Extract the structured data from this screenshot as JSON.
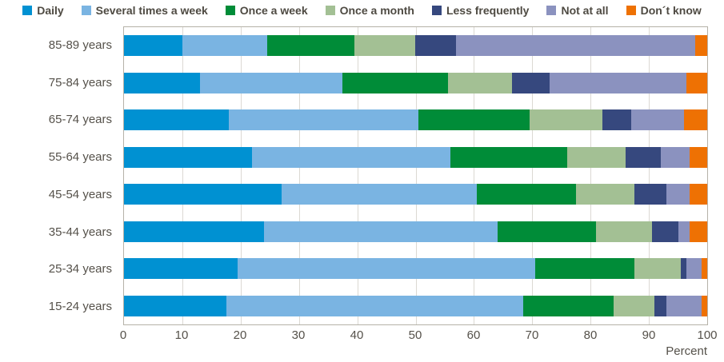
{
  "chart_data": {
    "type": "bar",
    "orientation": "horizontal",
    "stacked": true,
    "title": "",
    "xlabel": "Percent",
    "ylabel": "",
    "xlim": [
      0,
      100
    ],
    "xticks": [
      0,
      10,
      20,
      30,
      40,
      50,
      60,
      70,
      80,
      90,
      100
    ],
    "grid": true,
    "legend_position": "top",
    "categories": [
      "85-89 years",
      "75-84 years",
      "65-74 years",
      "55-64 years",
      "45-54 years",
      "35-44 years",
      "25-34 years",
      "15-24 years"
    ],
    "series": [
      {
        "name": "Daily",
        "color": "#0091d2",
        "values": [
          10,
          13,
          18,
          22,
          27,
          24,
          19.5,
          17.5
        ]
      },
      {
        "name": "Several times a week",
        "color": "#7ab4e2",
        "values": [
          14.5,
          24.5,
          32.5,
          34,
          33.5,
          40,
          51,
          51
        ]
      },
      {
        "name": "Once a week",
        "color": "#008c38",
        "values": [
          15,
          18,
          19,
          20,
          17,
          17,
          17,
          15.5
        ]
      },
      {
        "name": "Once a month",
        "color": "#a3c094",
        "values": [
          10.5,
          11,
          12.5,
          10,
          10,
          9.5,
          8,
          7
        ]
      },
      {
        "name": "Less frequently",
        "color": "#36487e",
        "values": [
          7,
          6.5,
          5,
          6,
          5.5,
          4.5,
          1,
          2
        ]
      },
      {
        "name": "Not at all",
        "color": "#8b92bf",
        "values": [
          41,
          23.5,
          9,
          5,
          4,
          2,
          2.5,
          6
        ]
      },
      {
        "name": "Don´t know",
        "color": "#ee7103",
        "values": [
          2,
          3.5,
          4,
          3,
          3,
          3,
          1,
          1
        ]
      }
    ]
  }
}
